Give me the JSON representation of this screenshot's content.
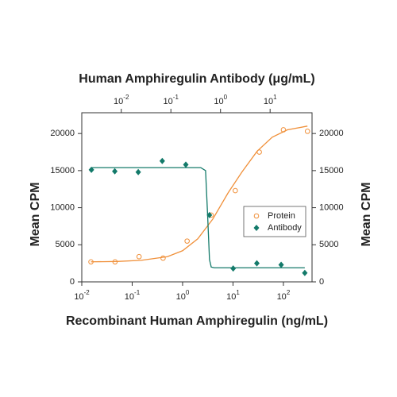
{
  "chart_data": {
    "type": "scatter",
    "x_title": "Recombinant Human Amphiregulin (ng/mL)",
    "x2_title": "Human Amphiregulin Antibody (μg/mL)",
    "y_title": "Mean CPM",
    "y2_title": "Mean CPM",
    "xscale": "log",
    "x2scale": "log",
    "xlim": [
      0.01,
      370
    ],
    "x2lim": [
      0.0016,
      70
    ],
    "xticks": [
      {
        "value": 0.01,
        "label": "10",
        "exponent": "-2"
      },
      {
        "value": 0.1,
        "label": "10",
        "exponent": "-1"
      },
      {
        "value": 1,
        "label": "10",
        "exponent": "0"
      },
      {
        "value": 10,
        "label": "10",
        "exponent": "1"
      },
      {
        "value": 100,
        "label": "10",
        "exponent": "2"
      }
    ],
    "x2ticks": [
      {
        "value": 0.01,
        "label": "10",
        "exponent": "-2"
      },
      {
        "value": 0.1,
        "label": "10",
        "exponent": "-1"
      },
      {
        "value": 1,
        "label": "10",
        "exponent": "0"
      },
      {
        "value": 10,
        "label": "10",
        "exponent": "1"
      }
    ],
    "ylim": [
      0,
      22800
    ],
    "yticks": [
      0,
      5000,
      10000,
      15000,
      20000
    ],
    "y2lim": [
      0,
      22800
    ],
    "y2ticks": [
      0,
      5000,
      10000,
      15000,
      20000
    ],
    "legend": "right",
    "series": [
      {
        "name": "Protein",
        "color": "#f0903a",
        "marker": "circle",
        "xaxis": "x",
        "x": [
          0.0152,
          0.0457,
          0.137,
          0.41,
          1.23,
          3.7,
          11.1,
          33.3,
          100,
          300
        ],
        "values": [
          2700,
          2700,
          3400,
          3200,
          5500,
          9000,
          12300,
          17500,
          20500,
          20300
        ],
        "fit": {
          "x": [
            0.0152,
            0.05,
            0.15,
            0.5,
            1,
            2,
            4,
            8,
            15,
            30,
            60,
            120,
            300
          ],
          "values": [
            2700,
            2750,
            2900,
            3400,
            4200,
            5800,
            8500,
            12000,
            14800,
            17600,
            19500,
            20500,
            21000
          ]
        }
      },
      {
        "name": "Antibody",
        "color": "#137a6a",
        "marker": "diamond",
        "xaxis": "x2",
        "x": [
          0.0025,
          0.0074,
          0.022,
          0.067,
          0.2,
          0.6,
          1.8,
          5.4,
          16.7,
          50
        ],
        "values": [
          15100,
          14900,
          14800,
          16300,
          15800,
          9000,
          1800,
          2500,
          2300,
          1200
        ],
        "fit": {
          "x": [
            0.0025,
            0.4,
            0.5,
            0.55,
            0.6,
            0.65,
            0.75,
            50
          ],
          "values": [
            15400,
            15400,
            15000,
            9000,
            3000,
            2000,
            1900,
            1900
          ]
        }
      }
    ]
  }
}
